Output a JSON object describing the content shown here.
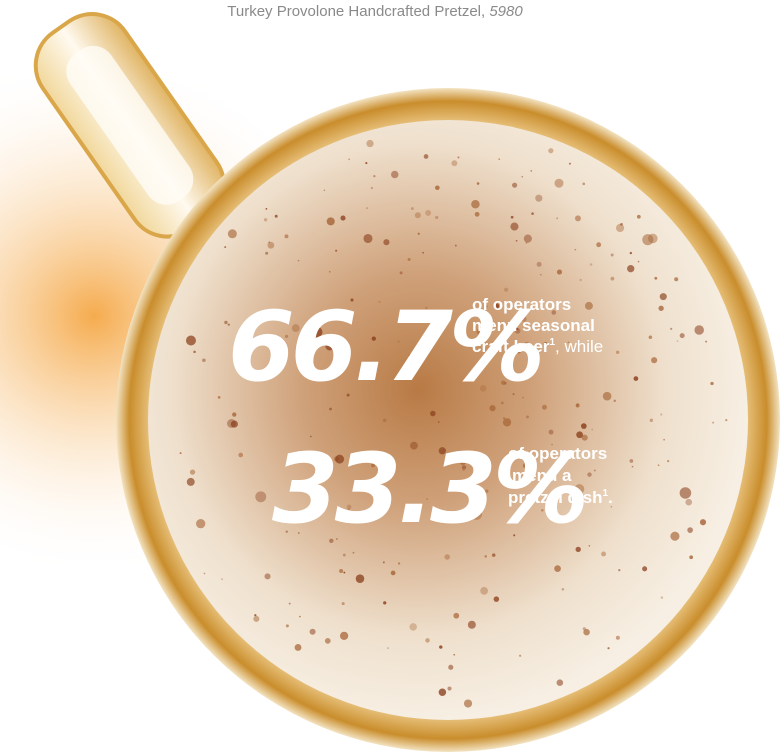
{
  "caption": {
    "text": "Turkey Provolone Handcrafted Pretzel,",
    "price": "5980"
  },
  "stats": [
    {
      "figure": "66.7%",
      "bold_lines": [
        "of operators",
        "menu seasonal",
        "craft beer"
      ],
      "note": "1",
      "tail": ", while"
    },
    {
      "figure": "33.3%",
      "bold_lines": [
        "of operators",
        "menu a",
        "pretzel dish"
      ],
      "note": "1",
      "tail": "."
    }
  ]
}
